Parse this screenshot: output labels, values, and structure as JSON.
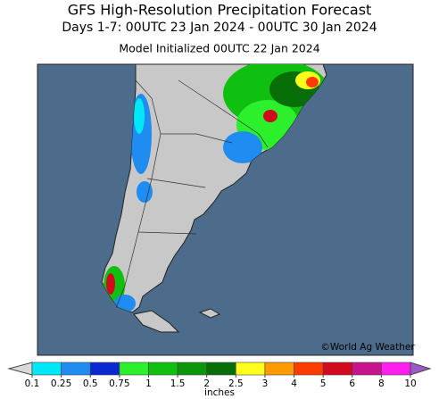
{
  "header": {
    "title": "GFS High-Resolution Precipitation Forecast",
    "period": "Days 1-7: 00UTC 23 Jan 2024 - 00UTC 30 Jan 2024",
    "init": "Model Initialized 00UTC 22 Jan 2024"
  },
  "map": {
    "credit": "©World Ag Weather"
  },
  "legend": {
    "unit": "inches",
    "ticks": [
      0.1,
      0.25,
      0.5,
      0.75,
      1,
      1.5,
      2,
      2.5,
      3,
      4,
      5,
      6,
      8,
      10
    ],
    "colors": [
      "#d9d9d9",
      "#00e8f8",
      "#1e8cf0",
      "#0a28d2",
      "#2cf02c",
      "#10c010",
      "#0c960c",
      "#086e08",
      "#ffff1e",
      "#ff9a00",
      "#ff3c00",
      "#d20a1e",
      "#c8148c",
      "#ff1ef0",
      "#9a5ac8"
    ]
  }
}
